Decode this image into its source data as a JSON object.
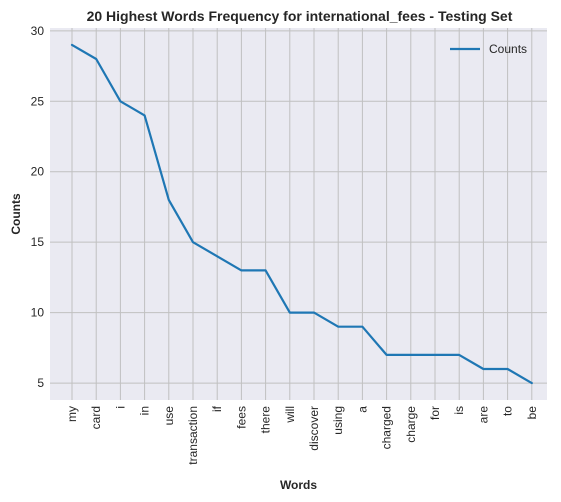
{
  "chart_data": {
    "type": "line",
    "title": "20 Highest Words Frequency for international_fees - Testing Set",
    "xlabel": "Words",
    "ylabel": "Counts",
    "categories": [
      "my",
      "card",
      "i",
      "in",
      "use",
      "transaction",
      "if",
      "fees",
      "there",
      "will",
      "discover",
      "using",
      "a",
      "charged",
      "charge",
      "for",
      "is",
      "are",
      "to",
      "be"
    ],
    "series": [
      {
        "name": "Counts",
        "color": "#1f77b4",
        "values": [
          29,
          28,
          25,
          24,
          18,
          15,
          14,
          13,
          13,
          10,
          10,
          9,
          9,
          7,
          7,
          7,
          7,
          6,
          6,
          5
        ]
      }
    ],
    "yticks": [
      5,
      10,
      15,
      20,
      25,
      30
    ],
    "ylim": [
      3.8,
      30.2
    ],
    "grid": true,
    "legend_position": "top-right",
    "colors": {
      "plot_background": "#eaeaf2",
      "grid": "#c0c0c0",
      "line": "#1f77b4"
    }
  }
}
